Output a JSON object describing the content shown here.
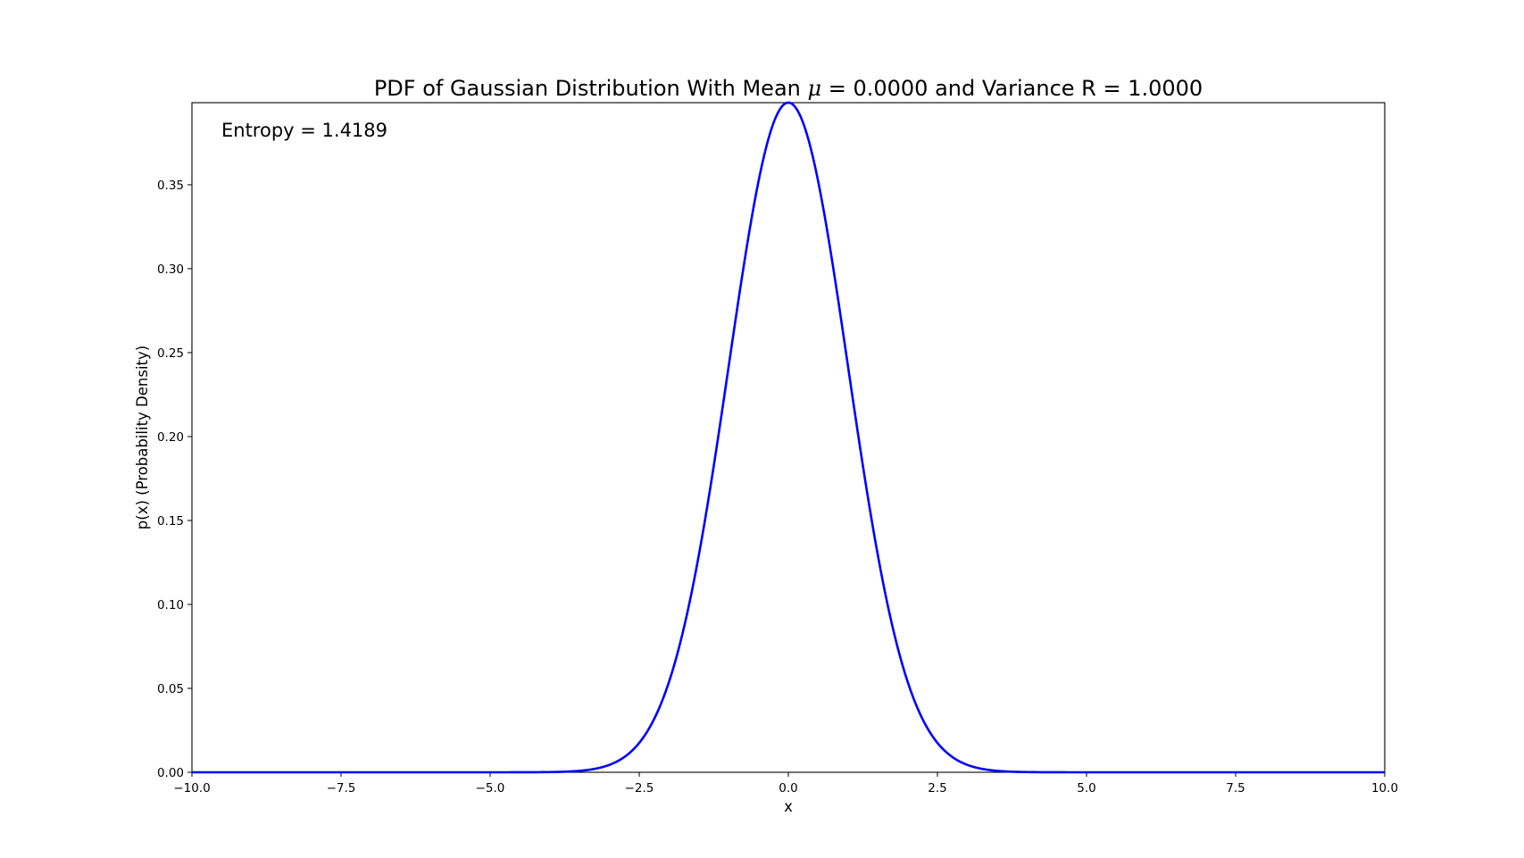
{
  "chart_data": {
    "type": "line",
    "title_prefix": "PDF of Gaussian Distribution With Mean ",
    "title_symbol": "μ",
    "title_suffix": " = 0.0000 and Variance R = 1.0000",
    "xlabel": "x",
    "ylabel": "p(x) (Probability Density)",
    "annotation": "Entropy = 1.4189",
    "xlim": [
      -10.0,
      10.0
    ],
    "ylim": [
      0.0,
      0.3989
    ],
    "xticks": [
      -10.0,
      -7.5,
      -5.0,
      -2.5,
      0.0,
      2.5,
      5.0,
      7.5,
      10.0
    ],
    "xtick_labels": [
      "−10.0",
      "−7.5",
      "−5.0",
      "−2.5",
      "0.0",
      "2.5",
      "5.0",
      "7.5",
      "10.0"
    ],
    "yticks": [
      0.0,
      0.05,
      0.1,
      0.15,
      0.2,
      0.25,
      0.3,
      0.35
    ],
    "ytick_labels": [
      "0.00",
      "0.05",
      "0.10",
      "0.15",
      "0.20",
      "0.25",
      "0.30",
      "0.35"
    ],
    "grid": false,
    "series": [
      {
        "color": "#0000ff",
        "mean": 0.0,
        "variance": 1.0,
        "x": [
          -10.0,
          -5.0,
          -4.0,
          -3.5,
          -3.0,
          -2.75,
          -2.5,
          -2.25,
          -2.0,
          -1.75,
          -1.5,
          -1.25,
          -1.0,
          -0.75,
          -0.5,
          -0.25,
          0.0,
          0.25,
          0.5,
          0.75,
          1.0,
          1.25,
          1.5,
          1.75,
          2.0,
          2.25,
          2.5,
          2.75,
          3.0,
          3.5,
          4.0,
          5.0,
          10.0
        ],
        "y": [
          0.0,
          1.5e-06,
          0.0001,
          0.0009,
          0.0044,
          0.0091,
          0.0175,
          0.0317,
          0.054,
          0.0863,
          0.1295,
          0.1826,
          0.242,
          0.3011,
          0.3521,
          0.3867,
          0.3989,
          0.3867,
          0.3521,
          0.3011,
          0.242,
          0.1826,
          0.1295,
          0.0863,
          0.054,
          0.0317,
          0.0175,
          0.0091,
          0.0044,
          0.0009,
          0.0001,
          1.5e-06,
          0.0
        ]
      }
    ]
  }
}
